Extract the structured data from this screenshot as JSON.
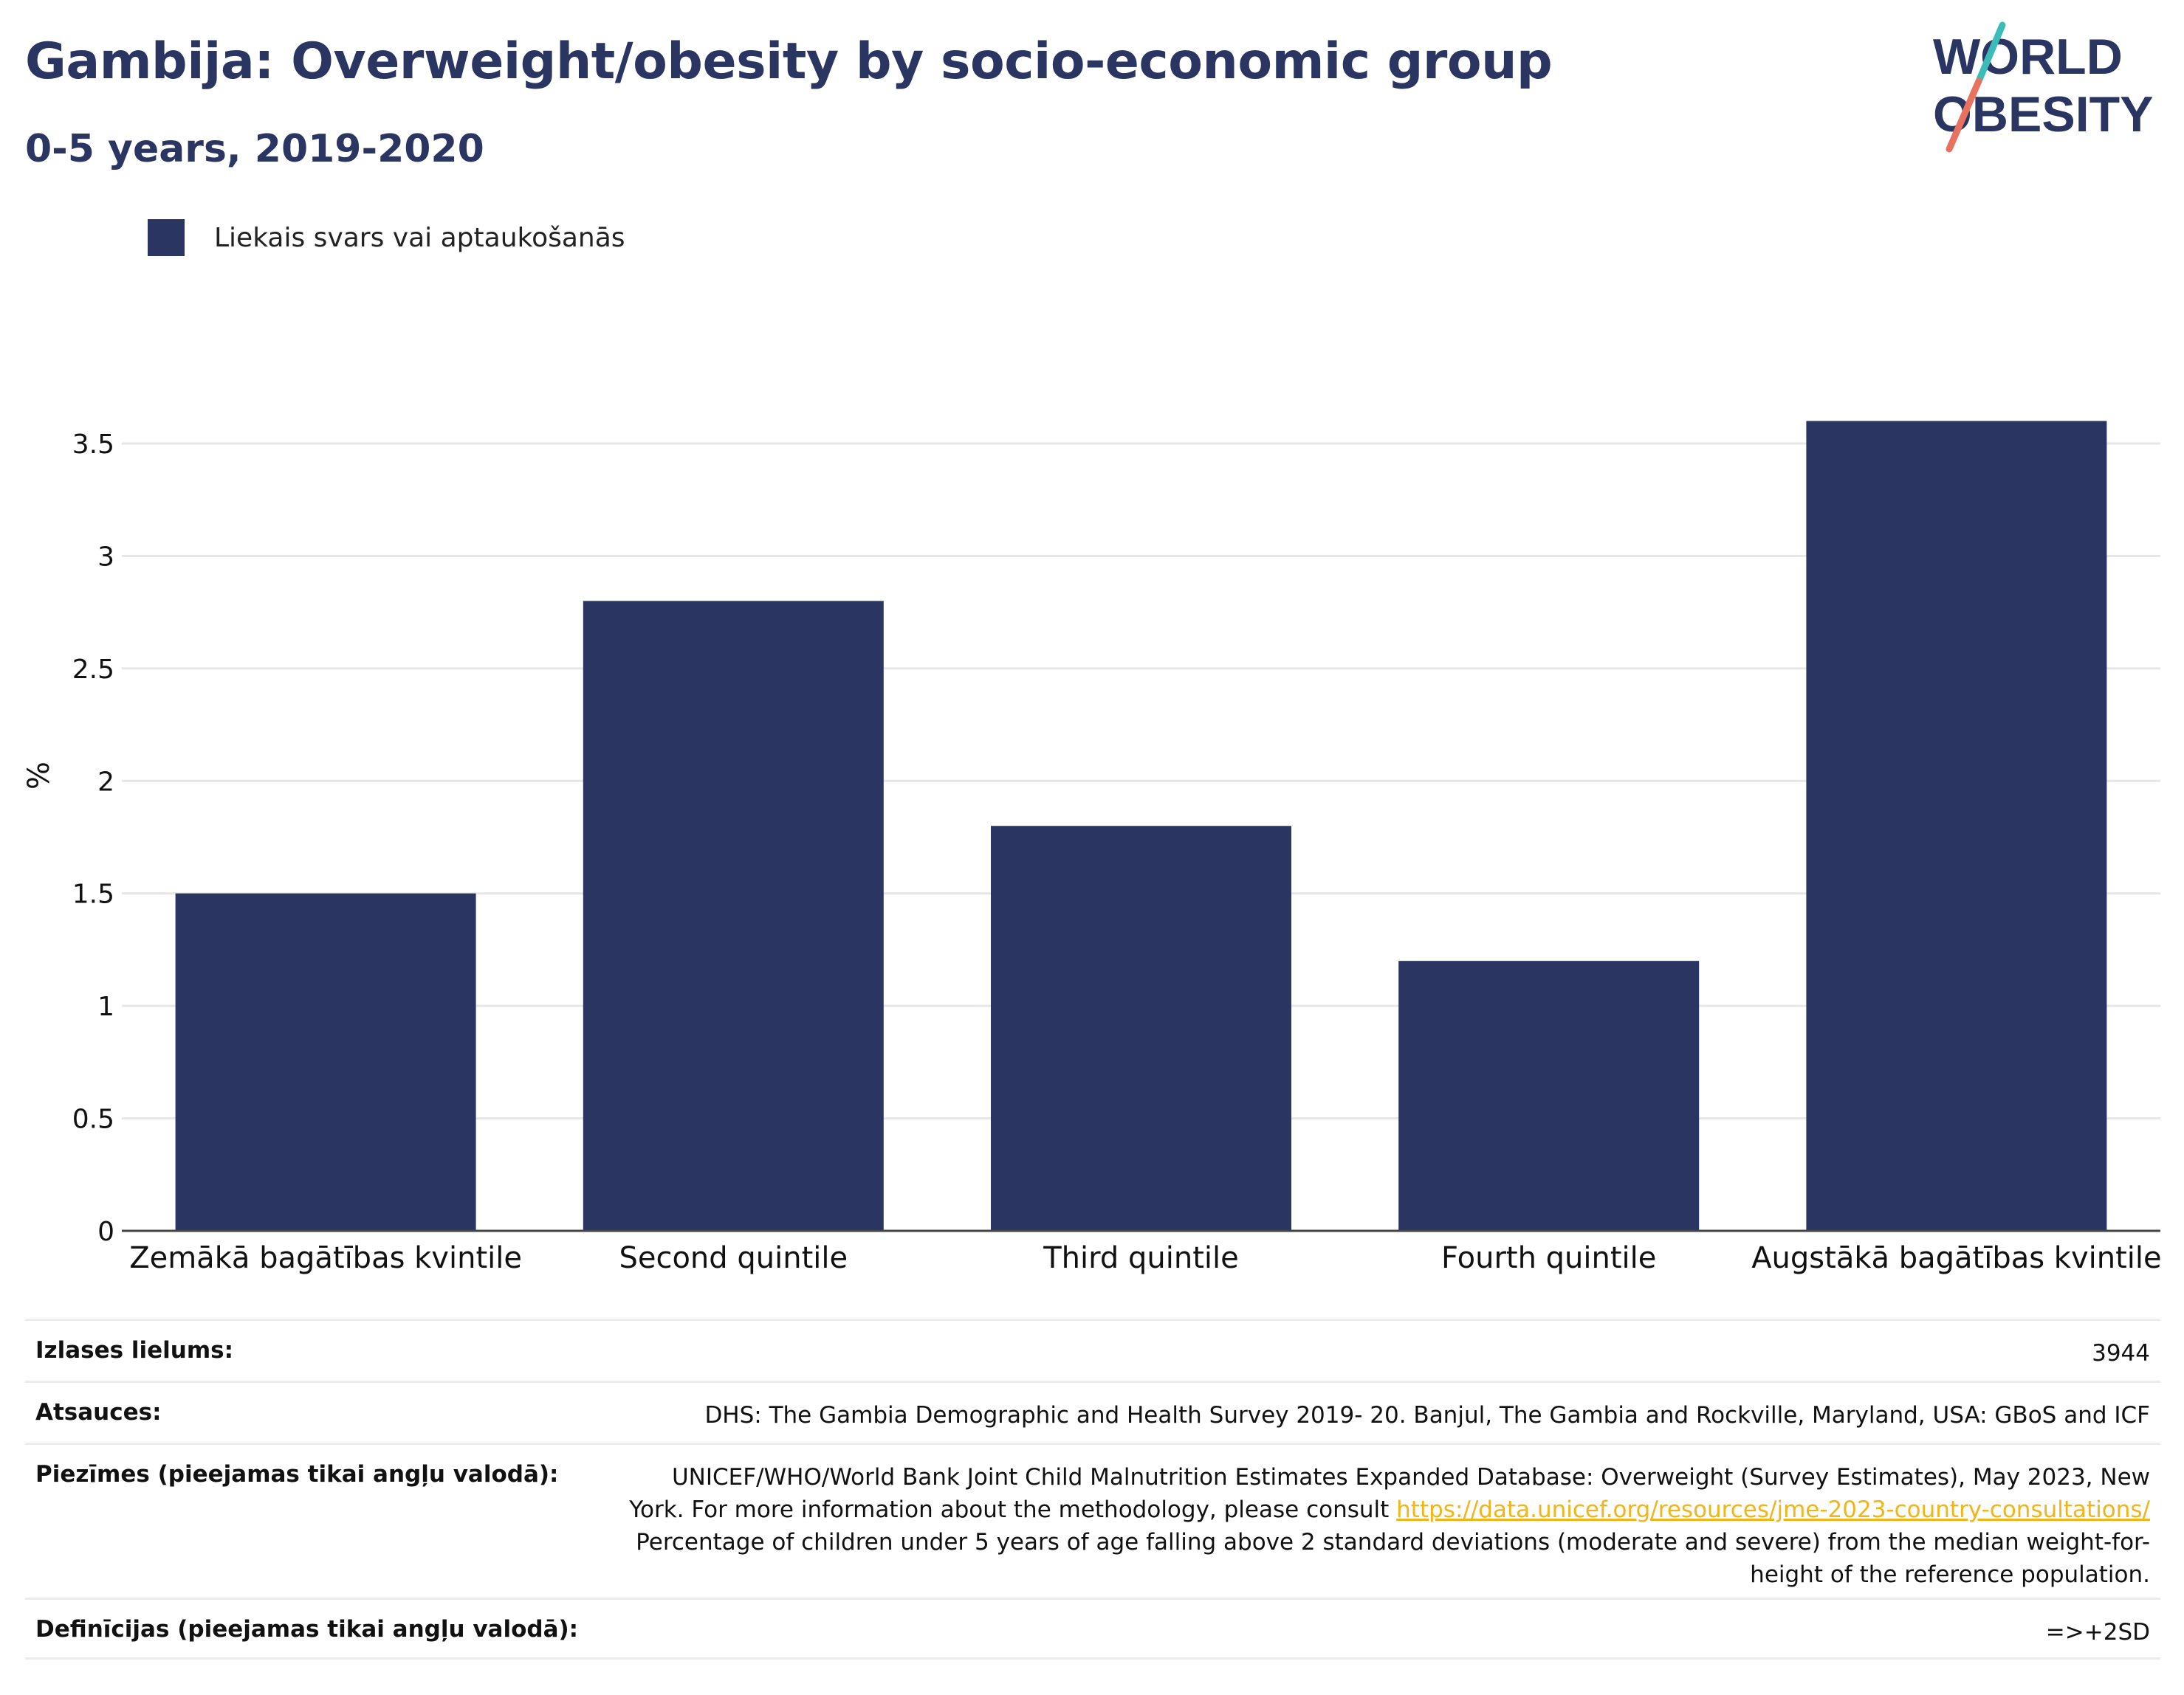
{
  "header": {
    "title": "Gambija: Overweight/obesity by socio-economic group",
    "subtitle": "0-5 years, 2019-2020"
  },
  "logo": {
    "line1": "WORLD",
    "line2": "OBESITY",
    "accent_colors": [
      "#3cbcb8",
      "#e8725f"
    ]
  },
  "legend": {
    "label": "Liekais svars vai aptaukošanās",
    "color": "#2b3561"
  },
  "chart_data": {
    "type": "bar",
    "categories": [
      "Zemākā bagātības kvintile",
      "Second quintile",
      "Third quintile",
      "Fourth quintile",
      "Augstākā bagātības kvintile"
    ],
    "series": [
      {
        "name": "Liekais svars vai aptaukošanās",
        "values": [
          1.5,
          2.8,
          1.8,
          1.2,
          3.6
        ],
        "color": "#2b3561"
      }
    ],
    "ylabel": "%",
    "xlabel": "",
    "ylim": [
      0,
      3.7
    ],
    "yticks": [
      0,
      0.5,
      1,
      1.5,
      2,
      2.5,
      3,
      3.5
    ],
    "ytick_labels": [
      "0",
      "0.5",
      "1",
      "1.5",
      "2",
      "2.5",
      "3",
      "3.5"
    ],
    "grid": true
  },
  "info": {
    "sample_label": "Izlases lielums:",
    "sample_value": "3944",
    "refs_label": "Atsauces:",
    "refs_value": "DHS: The Gambia Demographic and Health Survey 2019- 20. Banjul, The Gambia and Rockville, Maryland, USA: GBoS and ICF",
    "notes_label": "Piezīmes (pieejamas tikai angļu valodā):",
    "notes_line1": "UNICEF/WHO/World Bank Joint Child Malnutrition Estimates Expanded Database: Overweight (Survey Estimates), May 2023, New",
    "notes_line2_prefix": "York. For more information about the methodology, please consult ",
    "notes_link": "https://data.unicef.org/resources/jme-2023-country-consultations/",
    "notes_line3": "Percentage of children under 5 years of age falling above 2 standard deviations (moderate and severe) from the median weight-for-",
    "notes_line4": "height of the reference population.",
    "defs_label": "Definīcijas (pieejamas tikai angļu valodā):",
    "defs_value": "=>+2SD"
  }
}
